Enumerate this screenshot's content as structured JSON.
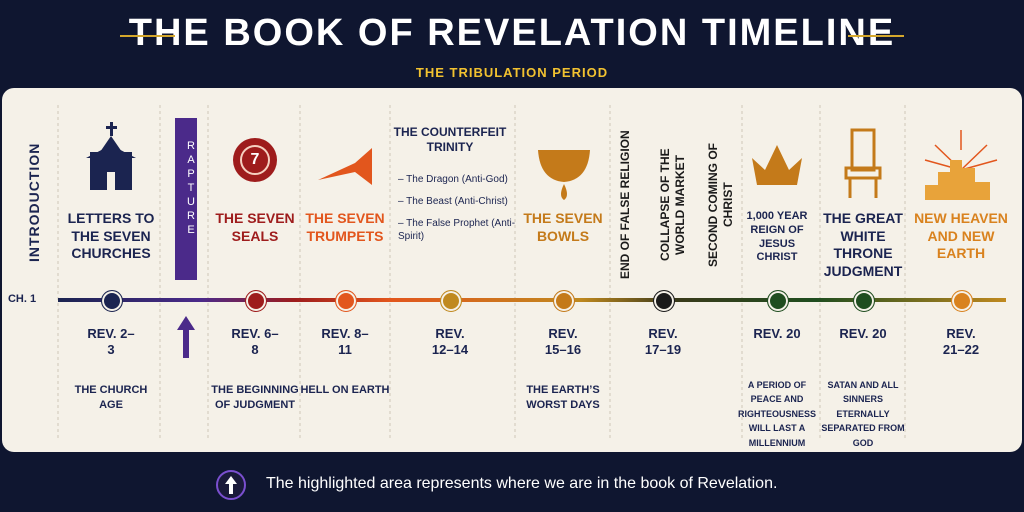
{
  "header": {
    "title": "THE BOOK OF REVELATION TIMELINE",
    "subtitle": "THE TRIBULATION PERIOD"
  },
  "timeline": {
    "start_label": "CH. 1",
    "intro": "INTRODUCTION",
    "rapture": "RAPTURE",
    "events": [
      {
        "heading": "LETTERS TO THE SEVEN CHURCHES",
        "reference": "REV. 2–3",
        "note": "THE CHURCH AGE",
        "color": "#1b2450"
      },
      {
        "heading": "THE SEVEN SEALS",
        "icon_text": "7",
        "reference": "REV. 6–8",
        "note": "THE BEGINNING OF JUDGMENT",
        "color": "#9e1c1c"
      },
      {
        "heading": "THE SEVEN TRUMPETS",
        "reference": "REV. 8–11",
        "note": "HELL ON EARTH",
        "color": "#e2561d"
      },
      {
        "heading": "THE COUNTERFEIT TRINITY",
        "items": [
          "– The Dragon (Anti-God)",
          "– The Beast (Anti-Christ)",
          "– The False Prophet (Anti-Spirit)"
        ],
        "reference": "REV. 12–14",
        "color": "#c0891f"
      },
      {
        "heading": "THE SEVEN BOWLS",
        "reference": "REV. 15–16",
        "note": "THE EARTH’S WORST DAYS",
        "color": "#c47a1a"
      },
      {
        "vertical_labels": [
          "END OF FALSE RELIGION",
          "COLLAPSE OF THE WORLD MARKET"
        ],
        "reference": "REV. 17–19",
        "color": "#1a1a1a"
      },
      {
        "vertical_labels": [
          "SECOND COMING OF CHRIST"
        ],
        "heading": "1,000 YEAR REIGN OF JESUS CHRIST",
        "reference": "REV. 20",
        "note": "A PERIOD OF PEACE AND RIGHTEOUSNESS WILL LAST A MILLENNIUM",
        "color": "#1f4d1f"
      },
      {
        "heading": "THE GREAT WHITE THRONE JUDGMENT",
        "reference": "REV. 20",
        "note": "SATAN AND ALL SINNERS ETERNALLY SEPARATED FROM GOD",
        "color": "#1f4d1f"
      },
      {
        "heading": "NEW HEAVEN AND NEW EARTH",
        "reference": "REV. 21–22",
        "color": "#d9821e"
      }
    ]
  },
  "footer": {
    "note": "The highlighted area represents where we are in the book of Revelation."
  }
}
